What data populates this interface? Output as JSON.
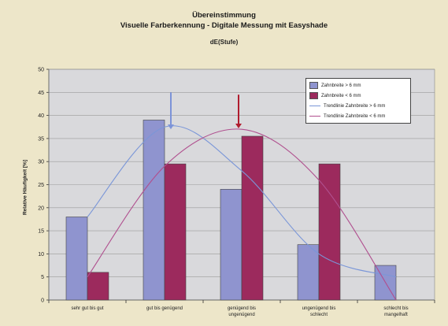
{
  "header": {
    "title_line1": "Übereinstimmung",
    "title_line2": "Visuelle Farberkennung - Digitale Messung mit Easyshade",
    "subtitle": "dE(Stufe)"
  },
  "chart_data": {
    "type": "bar",
    "title": "Übereinstimmung Visuelle Farberkennung - Digitale Messung mit Easyshade",
    "subtitle": "dE(Stufe)",
    "xlabel": "",
    "ylabel": "Relative Häufigkeit [%]",
    "ylim": [
      0,
      50
    ],
    "yticks": [
      0,
      5,
      10,
      15,
      20,
      25,
      30,
      35,
      40,
      45,
      50
    ],
    "grid": true,
    "legend_position": "top-right",
    "categories": [
      [
        "sehr gut bis gut"
      ],
      [
        "gut bis genügend"
      ],
      [
        "genügend bis",
        "ungenügend"
      ],
      [
        "ungenügend bis",
        "schlecht"
      ],
      [
        "schlecht bis",
        "mangelhaft"
      ]
    ],
    "series": [
      {
        "name": "Zahnbreite > 6 mm",
        "color": "#8f94cf",
        "values": [
          18,
          39,
          24,
          12,
          7.5
        ]
      },
      {
        "name": "Zahnbreite < 6 mm",
        "color": "#9c2a5d",
        "values": [
          6,
          29.5,
          35.5,
          29.5,
          0
        ]
      }
    ],
    "trendlines": [
      {
        "name": "Trendlinie Zahnbreite > 6 mm",
        "color": "#7a96d8",
        "values": [
          18,
          37.5,
          28,
          10,
          5
        ]
      },
      {
        "name": "Trendlinie Zahnbreite < 6 mm",
        "color": "#b0508f",
        "values": [
          5,
          29,
          37,
          26,
          0
        ]
      }
    ],
    "annotations": [
      {
        "type": "arrow",
        "category_index": 1,
        "color": "#7c93d8"
      },
      {
        "type": "arrow",
        "category_index": 2,
        "color": "#b01c2e"
      }
    ]
  }
}
